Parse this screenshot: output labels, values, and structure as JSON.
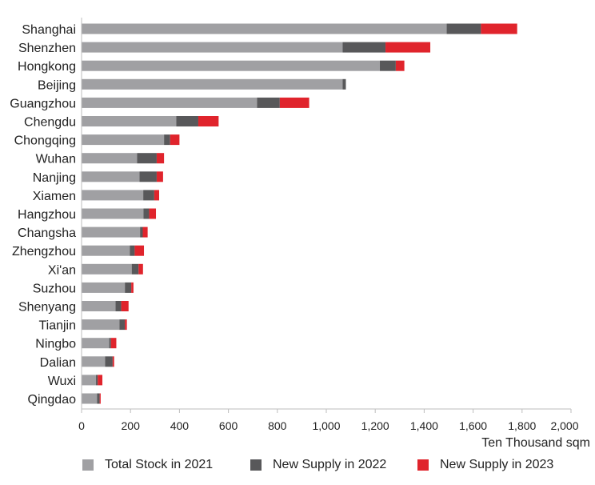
{
  "chart_data": {
    "type": "bar",
    "orientation": "horizontal",
    "stacked": true,
    "categories": [
      "Shanghai",
      "Shenzhen",
      "Hongkong",
      "Beijing",
      "Guangzhou",
      "Chengdu",
      "Chongqing",
      "Wuhan",
      "Nanjing",
      "Xiamen",
      "Hangzhou",
      "Changsha",
      "Zhengzhou",
      "Xi'an",
      "Suzhou",
      "Shenyang",
      "Tianjin",
      "Ningbo",
      "Dalian",
      "Wuxi",
      "Qingdao"
    ],
    "series": [
      {
        "name": "Total Stock in 2021",
        "color": "#a0a0a3",
        "values": [
          1492,
          1067,
          1219,
          1067,
          717,
          387,
          337,
          227,
          237,
          252,
          253,
          239,
          197,
          205,
          177,
          139,
          155,
          113,
          96,
          59,
          63
        ]
      },
      {
        "name": "New Supply in 2022",
        "color": "#58585a",
        "values": [
          140,
          175,
          65,
          13,
          93,
          90,
          25,
          80,
          70,
          45,
          23,
          11,
          20,
          28,
          26,
          23,
          22,
          7,
          31,
          7,
          11
        ]
      },
      {
        "name": "New Supply in 2023",
        "color": "#e0242c",
        "values": [
          148,
          183,
          35,
          0,
          120,
          83,
          38,
          30,
          26,
          20,
          28,
          20,
          38,
          18,
          9,
          30,
          8,
          22,
          6,
          19,
          4
        ]
      }
    ],
    "xlim": [
      0,
      2000
    ],
    "xticks": [
      0,
      200,
      400,
      600,
      800,
      1000,
      1200,
      1400,
      1600,
      1800,
      2000
    ],
    "xtick_labels": [
      "0",
      "200",
      "400",
      "600",
      "800",
      "1,000",
      "1,200",
      "1,400",
      "1,600",
      "1,800",
      "2,000"
    ],
    "xlabel": "Ten Thousand sqm",
    "ylabel": "",
    "grid": false,
    "legend_position": "bottom"
  }
}
